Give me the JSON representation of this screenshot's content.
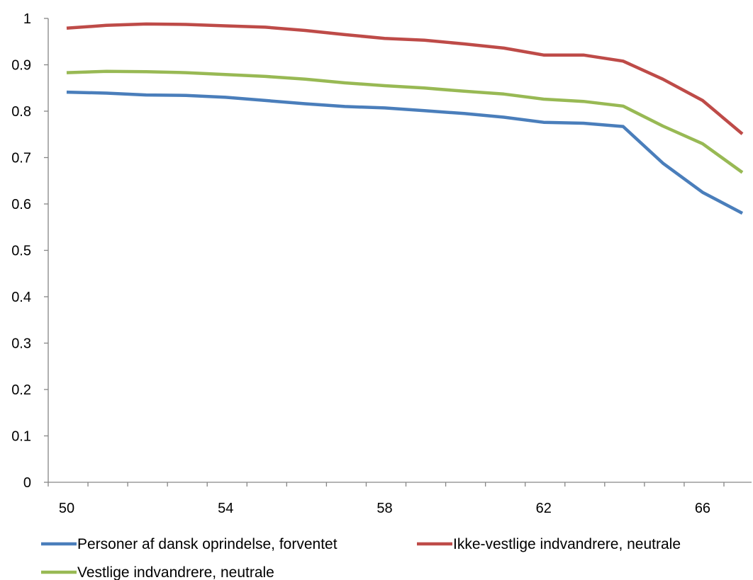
{
  "chart_data": {
    "type": "line",
    "title": "",
    "xlabel": "",
    "ylabel": "",
    "x": [
      50,
      51,
      52,
      53,
      54,
      55,
      56,
      57,
      58,
      59,
      60,
      61,
      62,
      63,
      64,
      65,
      66,
      67
    ],
    "x_ticks": [
      "50",
      "54",
      "58",
      "62",
      "66"
    ],
    "y_ticks": [
      "0",
      "0.1",
      "0.2",
      "0.3",
      "0.4",
      "0.5",
      "0.6",
      "0.7",
      "0.8",
      "0.9",
      "1"
    ],
    "ylim": [
      0,
      1
    ],
    "grid": false,
    "legend_position": "bottom",
    "series": [
      {
        "name": "Personer af dansk oprindelse, forventet",
        "color": "#4a7ebb",
        "values": [
          0.841,
          0.839,
          0.835,
          0.834,
          0.83,
          0.823,
          0.816,
          0.81,
          0.807,
          0.801,
          0.795,
          0.787,
          0.776,
          0.774,
          0.767,
          0.688,
          0.625,
          0.58
        ]
      },
      {
        "name": "Ikke-vestlige indvandrere, neutrale",
        "color": "#be4b48",
        "values": [
          0.979,
          0.985,
          0.988,
          0.987,
          0.984,
          0.981,
          0.974,
          0.965,
          0.957,
          0.953,
          0.945,
          0.936,
          0.921,
          0.921,
          0.908,
          0.869,
          0.823,
          0.751
        ]
      },
      {
        "name": "Vestlige indvandrere, neutrale",
        "color": "#98b954",
        "values": [
          0.883,
          0.886,
          0.885,
          0.883,
          0.879,
          0.875,
          0.869,
          0.861,
          0.855,
          0.85,
          0.843,
          0.837,
          0.826,
          0.821,
          0.811,
          0.768,
          0.73,
          0.668
        ]
      }
    ]
  }
}
